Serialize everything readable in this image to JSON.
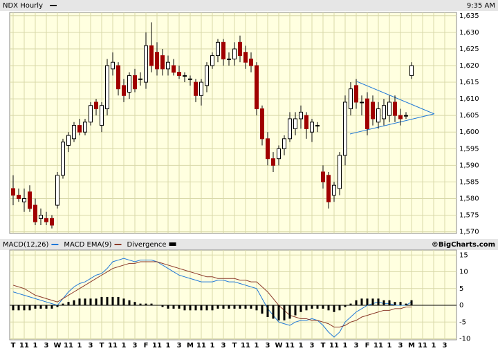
{
  "chart_data": [
    {
      "type": "candlestick",
      "title": "NDX Hourly",
      "annotation": "9:35 AM",
      "open": [
        1583,
        1581,
        1579,
        1582,
        1578,
        1574,
        1574,
        1574,
        1578,
        1587,
        1596,
        1598,
        1602,
        1600,
        1603,
        1609,
        1602,
        1607,
        1619,
        1620,
        1614,
        1612,
        1617,
        1616,
        1615,
        1626,
        1624,
        1623,
        1619,
        1620,
        1618,
        1617,
        1616,
        1615,
        1611,
        1614,
        1620,
        1623,
        1627,
        1622,
        1622,
        1627,
        1624,
        1622,
        1620,
        1607,
        1598,
        1592,
        1592,
        1595,
        1598,
        1601,
        1604,
        1605,
        1600,
        1602,
        1588,
        1587,
        1581,
        1583,
        1593,
        1607,
        1614,
        1609,
        1610,
        1609,
        1603,
        1604,
        1605,
        1609,
        1605,
        1605,
        1617,
        null,
        null,
        null,
        null,
        null,
        null,
        null
      ],
      "high": [
        1587,
        1583,
        1583,
        1584,
        1580,
        1577,
        1576,
        1575,
        1588,
        1598,
        1600,
        1603,
        1604,
        1604,
        1609,
        1610,
        1609,
        1622,
        1624,
        1621,
        1616,
        1618,
        1619,
        1618,
        1630,
        1633,
        1627,
        1625,
        1623,
        1622,
        1620,
        1618,
        1617,
        1616,
        1616,
        1621,
        1624,
        1628,
        1628,
        1624,
        1627,
        1629,
        1626,
        1624,
        1621,
        1608,
        1600,
        1594,
        1596,
        1599,
        1606,
        1606,
        1608,
        1606,
        1604,
        1603,
        1590,
        1588,
        1585,
        1594,
        1611,
        1615,
        1616,
        1611,
        1612,
        1611,
        1609,
        1610,
        1611,
        1611,
        1607,
        1606,
        1621,
        null,
        null,
        null,
        null,
        null,
        null,
        null
      ],
      "low": [
        1578,
        1579,
        1576,
        1576,
        1572,
        1572,
        1572,
        1571,
        1577,
        1586,
        1594,
        1597,
        1599,
        1599,
        1602,
        1605,
        1600,
        1605,
        1617,
        1611,
        1609,
        1610,
        1612,
        1614,
        1613,
        1618,
        1617,
        1617,
        1617,
        1617,
        1616,
        1615,
        1614,
        1609,
        1608,
        1612,
        1619,
        1621,
        1620,
        1620,
        1620,
        1621,
        1619,
        1618,
        1605,
        1596,
        1590,
        1588,
        1590,
        1593,
        1597,
        1599,
        1601,
        1598,
        1597,
        1600,
        1583,
        1577,
        1579,
        1581,
        1590,
        1605,
        1607,
        1605,
        1599,
        1602,
        1601,
        1602,
        1603,
        1603,
        1602,
        1604,
        1616,
        null,
        null,
        null,
        null,
        null,
        null,
        null
      ],
      "close": [
        1581,
        1580,
        1580,
        1577,
        1573,
        1575,
        1573,
        1572,
        1587,
        1597,
        1599,
        1602,
        1600,
        1603,
        1608,
        1607,
        1608,
        1620,
        1621,
        1613,
        1611,
        1617,
        1613,
        1616,
        1626,
        1620,
        1619,
        1619,
        1621,
        1618,
        1617,
        1617,
        1616,
        1611,
        1615,
        1620,
        1623,
        1627,
        1622,
        1622,
        1625,
        1623,
        1621,
        1620,
        1607,
        1598,
        1592,
        1590,
        1595,
        1598,
        1604,
        1604,
        1606,
        1601,
        1603,
        1602,
        1585,
        1579,
        1584,
        1593,
        1609,
        1613,
        1609,
        1609,
        1601,
        1604,
        1607,
        1608,
        1609,
        1605,
        1604,
        1605,
        1620,
        null,
        null,
        null,
        null,
        null,
        null,
        null
      ],
      "up_color": "#ffffff",
      "down_color": "#a00000",
      "ylim": [
        1569.5,
        1636
      ],
      "yticks": [
        {
          "value": 1570,
          "label": "1,570"
        },
        {
          "value": 1575,
          "label": "1,575"
        },
        {
          "value": 1580,
          "label": "1,580"
        },
        {
          "value": 1585,
          "label": "1,585"
        },
        {
          "value": 1590,
          "label": "1,590"
        },
        {
          "value": 1595,
          "label": "1,595"
        },
        {
          "value": 1600,
          "label": "1,600"
        },
        {
          "value": 1605,
          "label": "1,605"
        },
        {
          "value": 1610,
          "label": "1,610"
        },
        {
          "value": 1615,
          "label": "1,615"
        },
        {
          "value": 1620,
          "label": "1,620"
        },
        {
          "value": 1625,
          "label": "1,625"
        },
        {
          "value": 1630,
          "label": "1,630"
        },
        {
          "value": 1635,
          "label": "1,635"
        }
      ],
      "grid": true
    },
    {
      "type": "line",
      "source": "©BigCharts.com",
      "categories": [
        "T",
        null,
        "11",
        null,
        "1",
        null,
        "3",
        null,
        "W",
        null,
        "11",
        null,
        "1",
        null,
        "3",
        null,
        "T",
        null,
        "11",
        null,
        "1",
        null,
        "3",
        null,
        "F",
        null,
        "11",
        null,
        "1",
        null,
        "3",
        null,
        "M",
        null,
        "11",
        null,
        "1",
        null,
        "3",
        null,
        "T",
        null,
        "11",
        null,
        "1",
        null,
        "3",
        null,
        "W",
        null,
        "11",
        null,
        "1",
        null,
        "3",
        null,
        "T",
        null,
        "11",
        null,
        "1",
        null,
        "3",
        null,
        "F",
        null,
        "11",
        null,
        "1",
        null,
        "3",
        null,
        "M",
        null,
        "11",
        null,
        "1",
        null,
        "3",
        null
      ],
      "series": [
        {
          "name": "MACD(12,26)",
          "color": "#1f78d8",
          "type": "line",
          "values": [
            4,
            3.5,
            3,
            2.5,
            2,
            1.5,
            1,
            0.5,
            0,
            2,
            4,
            5.5,
            6.5,
            7,
            8,
            9,
            9.5,
            11,
            13,
            13.5,
            14,
            13.5,
            13,
            13.5,
            13.5,
            13.5,
            13,
            12,
            11,
            10,
            9,
            8.5,
            8,
            7.5,
            7,
            7,
            7,
            7.5,
            7.5,
            7,
            7,
            6.5,
            6,
            5.5,
            5,
            2,
            -1,
            -3,
            -5,
            -5.5,
            -6,
            -5,
            -4.5,
            -4.5,
            -4,
            -4.5,
            -6,
            -8,
            -9.5,
            -8,
            -5,
            -3.5,
            -2,
            -1,
            0,
            0.5,
            1,
            0.5,
            0.5,
            0,
            0,
            0,
            1,
            null,
            null,
            null,
            null,
            null,
            null,
            null
          ]
        },
        {
          "name": "MACD EMA(9)",
          "color": "#8b3a2a",
          "type": "line",
          "values": [
            6,
            5.5,
            5,
            4,
            3,
            2.5,
            2,
            1.5,
            1,
            2,
            3,
            4,
            5,
            6,
            7,
            8,
            9,
            10,
            11,
            11.5,
            12,
            12.5,
            12.5,
            13,
            13,
            13,
            13,
            12.5,
            12,
            11.5,
            11,
            10.5,
            10,
            9.5,
            9,
            8.5,
            8.5,
            8,
            8,
            8,
            8,
            7.5,
            7.5,
            7,
            7,
            5.5,
            4,
            2,
            0,
            -1.5,
            -3,
            -3.5,
            -4,
            -4,
            -4.5,
            -4.5,
            -5,
            -5.5,
            -6.5,
            -6.5,
            -6,
            -5,
            -4.5,
            -3.5,
            -3,
            -2.5,
            -2,
            -1.5,
            -1.5,
            -1,
            -1,
            -0.5,
            -0.5,
            null,
            null,
            null,
            null,
            null,
            null,
            null
          ]
        },
        {
          "name": "Divergence",
          "color": "#000000",
          "type": "bar",
          "values": [
            -1.5,
            -1.5,
            -1.5,
            -1.5,
            -1,
            -1,
            -1,
            -1,
            -0.5,
            0.5,
            1,
            1.5,
            2,
            2,
            2,
            2,
            2.5,
            2.5,
            2.5,
            2.5,
            2,
            1.5,
            1,
            0.5,
            0.5,
            0.5,
            0,
            -0.5,
            -1,
            -1,
            -1,
            -1.5,
            -1.5,
            -1.5,
            -1.5,
            -1.5,
            -1.5,
            -1,
            -1,
            -1,
            -1,
            -1,
            -1,
            -1,
            -1.5,
            -2.5,
            -3.5,
            -4,
            -4.5,
            -4.5,
            -4,
            -3,
            -2,
            -1.5,
            -1,
            -1,
            -1,
            -1.5,
            -2,
            -1.5,
            -0.5,
            0.5,
            1.5,
            2,
            2,
            2,
            2,
            1.5,
            1.5,
            1,
            1,
            0.5,
            1.5,
            null,
            null,
            null,
            null,
            null,
            null,
            null
          ]
        }
      ],
      "ylim": [
        -10.3,
        16.5
      ],
      "yticks": [
        -10,
        -5,
        0,
        5,
        10,
        15
      ],
      "grid": true
    }
  ]
}
